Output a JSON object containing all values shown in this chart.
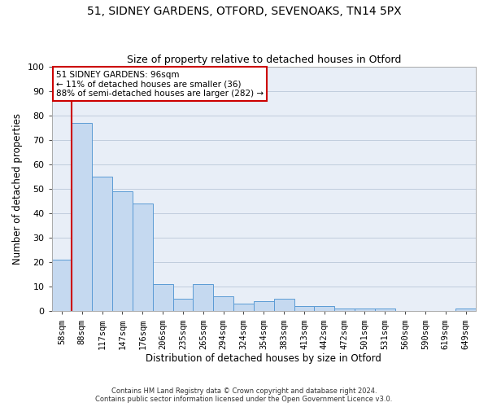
{
  "title": "51, SIDNEY GARDENS, OTFORD, SEVENOAKS, TN14 5PX",
  "subtitle": "Size of property relative to detached houses in Otford",
  "xlabel": "Distribution of detached houses by size in Otford",
  "ylabel": "Number of detached properties",
  "categories": [
    "58sqm",
    "88sqm",
    "117sqm",
    "147sqm",
    "176sqm",
    "206sqm",
    "235sqm",
    "265sqm",
    "294sqm",
    "324sqm",
    "354sqm",
    "383sqm",
    "413sqm",
    "442sqm",
    "472sqm",
    "501sqm",
    "531sqm",
    "560sqm",
    "590sqm",
    "619sqm",
    "649sqm"
  ],
  "bar_heights": [
    21,
    77,
    55,
    49,
    44,
    11,
    5,
    11,
    6,
    3,
    4,
    5,
    2,
    2,
    1,
    1,
    1,
    0,
    0,
    0,
    1
  ],
  "bar_color": "#c5d9f0",
  "bar_edge_color": "#5b9bd5",
  "vline_color": "#cc0000",
  "vline_x": 1,
  "annotation_text": "51 SIDNEY GARDENS: 96sqm\n← 11% of detached houses are smaller (36)\n88% of semi-detached houses are larger (282) →",
  "annotation_box_color": "#ffffff",
  "annotation_box_edge_color": "#cc0000",
  "ylim": [
    0,
    100
  ],
  "yticks": [
    0,
    10,
    20,
    30,
    40,
    50,
    60,
    70,
    80,
    90,
    100
  ],
  "grid_color": "#c0ccdd",
  "background_color": "#e8eef7",
  "footer_line1": "Contains HM Land Registry data © Crown copyright and database right 2024.",
  "footer_line2": "Contains public sector information licensed under the Open Government Licence v3.0.",
  "title_fontsize": 10,
  "subtitle_fontsize": 9,
  "xlabel_fontsize": 8.5,
  "ylabel_fontsize": 8.5,
  "annot_fontsize": 7.5,
  "footer_fontsize": 6.0
}
